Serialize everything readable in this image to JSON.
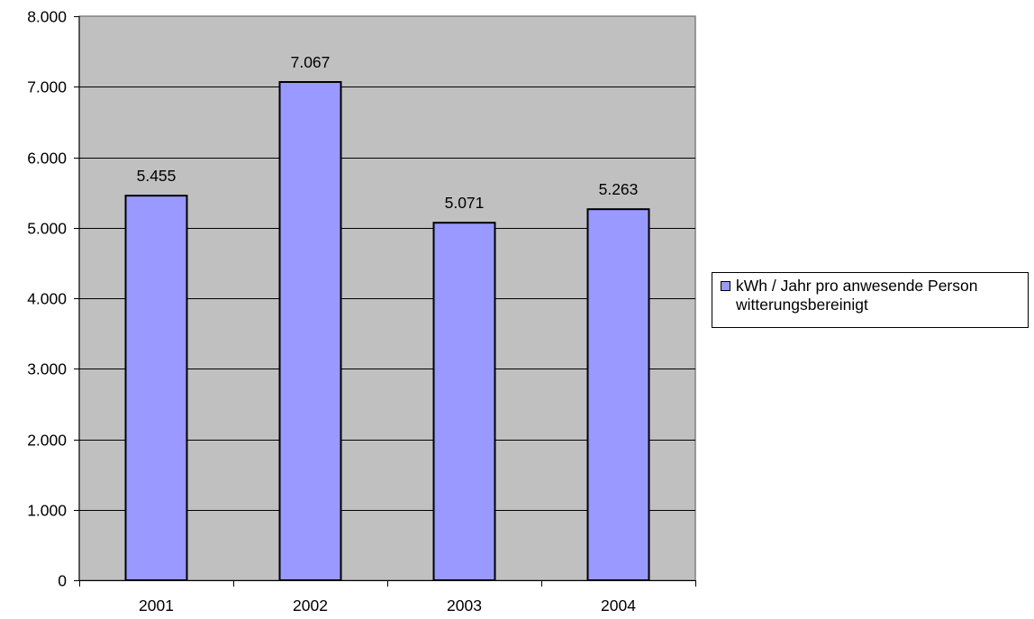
{
  "chart_data": {
    "type": "bar",
    "title": "",
    "xlabel": "",
    "ylabel": "",
    "categories": [
      "2001",
      "2002",
      "2003",
      "2004"
    ],
    "series": [
      {
        "name": "kWh / Jahr pro anwesende Person\nwitterungsbereinigt",
        "values": [
          5455,
          7067,
          5071,
          5263
        ],
        "value_labels": [
          "5.455",
          "7.067",
          "5.071",
          "5.263"
        ]
      }
    ],
    "ylim": [
      0,
      8000
    ],
    "yticks": [
      0,
      1000,
      2000,
      3000,
      4000,
      5000,
      6000,
      7000,
      8000
    ],
    "ytick_labels": [
      "0",
      "1.000",
      "2.000",
      "3.000",
      "4.000",
      "5.000",
      "6.000",
      "7.000",
      "8.000"
    ],
    "grid": true,
    "legend_position": "right",
    "colors": {
      "plot_background": "#c0c0c0",
      "bar_fill": "#9999ff",
      "bar_edge": "#000000",
      "gridline": "#000000",
      "page_background": "#ffffff"
    }
  }
}
